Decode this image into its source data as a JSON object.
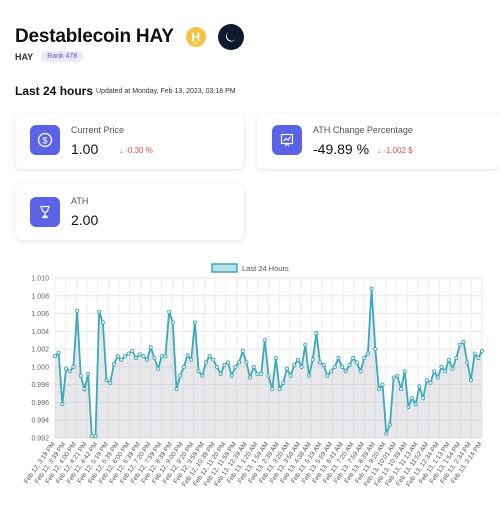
{
  "header": {
    "title": "Destablecoin HAY",
    "symbol": "HAY",
    "rank": "Rank 478",
    "coin_icon": "hay-coin-icon",
    "theme_icon": "moon-icon"
  },
  "period": {
    "label": "Last 24 hours",
    "updated": "Updated at Monday, Feb 13, 2023, 03:18 PM"
  },
  "cards": {
    "current_price": {
      "label": "Current Price",
      "value": "1.00",
      "change": "-0.30 %",
      "icon": "dollar-icon"
    },
    "ath_change": {
      "label": "ATH Change Percentage",
      "value": "-49.89 %",
      "change": "-1.002 $",
      "icon": "chart-icon"
    },
    "ath": {
      "label": "ATH",
      "value": "2.00",
      "icon": "trophy-icon"
    }
  },
  "colors": {
    "accent": "#5a63e6",
    "line": "#3aa9b9",
    "negative": "#e0533f"
  },
  "chart_data": {
    "type": "area",
    "legend": "Last 24 Hours",
    "legend_position": "top",
    "grid": true,
    "ylim": [
      0.992,
      1.01
    ],
    "yticks": [
      "1.010",
      "1.008",
      "1.006",
      "1.004",
      "1.002",
      "1.000",
      "0.998",
      "0.996",
      "0.994",
      "0.992"
    ],
    "xticks": [
      "Feb 12, 3:19 PM",
      "Feb 12, 3:39 PM",
      "Feb 12, 4:00 PM",
      "Feb 12, 4:21 PM",
      "Feb 12, 4:42 PM",
      "Feb 12, 5:19 PM",
      "Feb 12, 5:39 PM",
      "Feb 12, 6:00 PM",
      "Feb 12, 6:39 PM",
      "Feb 12, 7:20 PM",
      "Feb 12, 7:59 PM",
      "Feb 12, 8:39 PM",
      "Feb 12, 9:00 PM",
      "Feb 12, 9:20 PM",
      "Feb 12, 9:59 PM",
      "Feb 12, 10:39 PM",
      "Feb 12, 11:20 PM",
      "Feb 12, 11:59 PM",
      "Feb 13, 12:39 AM",
      "Feb 13, 1:20 AM",
      "Feb 13, 1:59 AM",
      "Feb 13, 2:39 AM",
      "Feb 13, 3:20 AM",
      "Feb 13, 3:58 AM",
      "Feb 13, 4:38 AM",
      "Feb 13, 5:19 AM",
      "Feb 13, 5:59 AM",
      "Feb 13, 6:41 AM",
      "Feb 13, 7:20 AM",
      "Feb 13, 7:59 AM",
      "Feb 13, 8:39 AM",
      "Feb 13, 9:20 AM",
      "Feb 13, 10:01 AM",
      "Feb 13, 10:39 AM",
      "Feb 13, 11:13 AM",
      "Feb 13, 11:52 AM",
      "Feb 13, 12:34 PM",
      "Feb 13, 1:13 PM",
      "Feb 13, 1:54 PM",
      "Feb 13, 2:34 PM",
      "Feb 13, 3:14 PM"
    ],
    "values": [
      1.0012,
      1.0016,
      0.9958,
      0.9998,
      0.9995,
      1.0,
      1.0063,
      0.999,
      0.9975,
      0.9992,
      0.9922,
      0.9922,
      1.0062,
      1.005,
      0.9985,
      0.9982,
      1.0003,
      1.0012,
      1.0008,
      1.0012,
      1.0015,
      1.0018,
      1.001,
      1.0014,
      1.0012,
      1.0008,
      1.0022,
      1.001,
      0.9998,
      1.0012,
      1.0012,
      1.0062,
      1.005,
      0.9975,
      0.999,
      1.0,
      1.0013,
      1.0008,
      1.005,
      0.9995,
      0.999,
      1.0005,
      1.0012,
      1.0008,
      1.0,
      0.9992,
      1.0002,
      1.0005,
      0.999,
      1.0,
      1.0005,
      1.0018,
      1.0005,
      0.9988,
      1.0,
      0.9992,
      0.9992,
      1.003,
      0.999,
      0.9975,
      1.001,
      0.9975,
      0.9982,
      0.9998,
      0.999,
      1.0002,
      1.0008,
      1.0,
      1.0025,
      0.999,
      1.0008,
      1.0038,
      1.0005,
      1.0002,
      0.999,
      0.9995,
      1.0,
      1.001,
      1.0,
      0.9995,
      1.0002,
      1.001,
      1.0005,
      0.9995,
      1.001,
      1.0015,
      1.0088,
      1.002,
      0.9975,
      0.998,
      0.9925,
      0.9935,
      0.9988,
      0.999,
      0.9975,
      0.9995,
      0.9955,
      0.9965,
      0.9958,
      0.9978,
      0.9965,
      0.9985,
      0.9982,
      0.9995,
      0.9988,
      1.0,
      0.9995,
      1.0008,
      0.9998,
      1.001,
      1.0025,
      1.0028,
      1.0005,
      0.9985,
      1.0015,
      1.001,
      1.0018
    ]
  }
}
